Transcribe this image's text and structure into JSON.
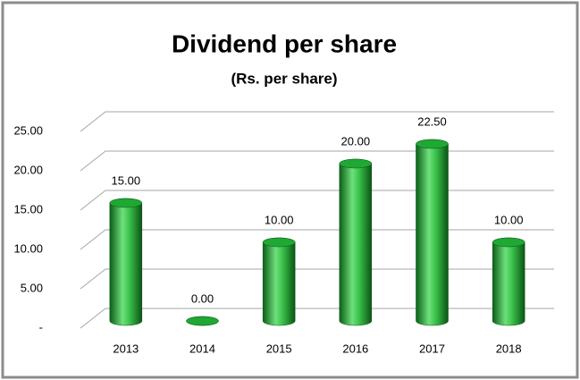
{
  "chart_data": {
    "type": "bar",
    "title": "Dividend per share",
    "subtitle": "(Rs. per share)",
    "categories": [
      "2013",
      "2014",
      "2015",
      "2016",
      "2017",
      "2018"
    ],
    "values": [
      15,
      0,
      10,
      20,
      22.5,
      10
    ],
    "value_labels": [
      "15.00",
      "0.00",
      "10.00",
      "20.00",
      "22.50",
      "10.00"
    ],
    "color": "#1fa833",
    "ylim": [
      0,
      25
    ],
    "yticks": [
      {
        "value": 0,
        "label": "-"
      },
      {
        "value": 5,
        "label": "5.00"
      },
      {
        "value": 10,
        "label": "10.00"
      },
      {
        "value": 15,
        "label": "15.00"
      },
      {
        "value": 20,
        "label": "20.00"
      },
      {
        "value": 25,
        "label": "25.00"
      }
    ],
    "grid": true
  }
}
